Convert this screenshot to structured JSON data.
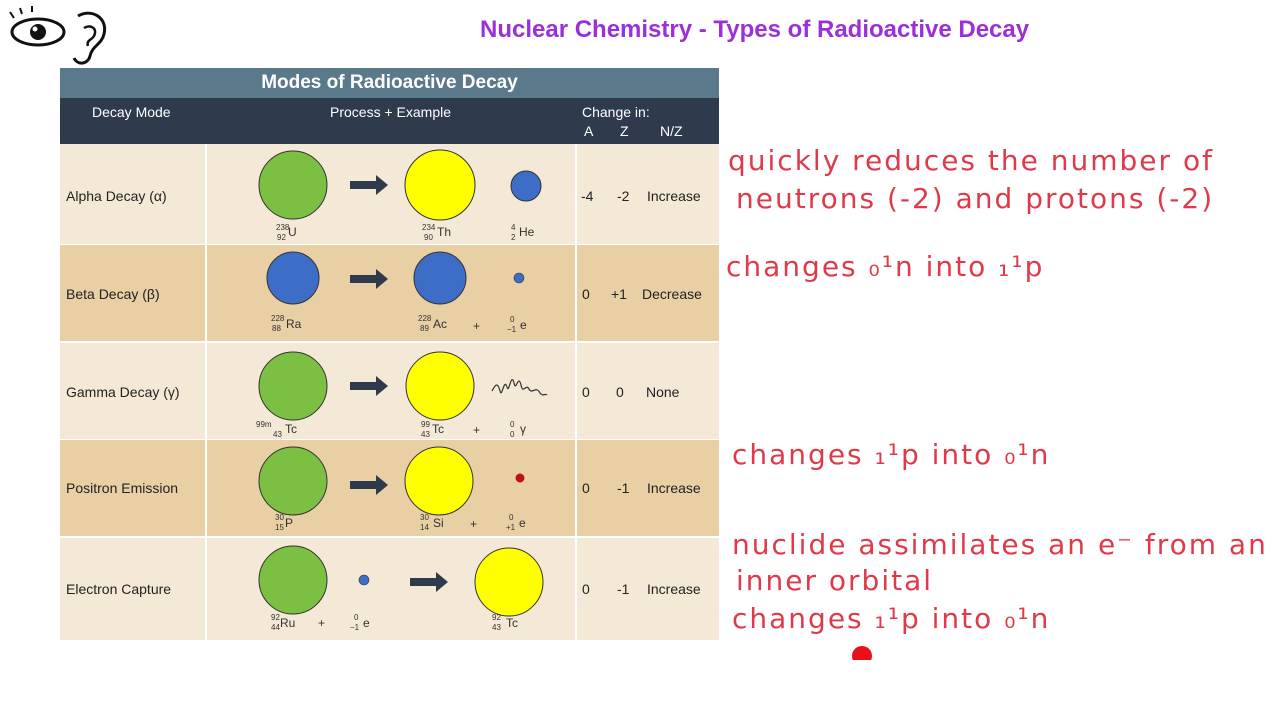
{
  "page": {
    "title": "Nuclear Chemistry - Types of Radioactive Decay"
  },
  "table": {
    "title": "Modes of Radioactive Decay",
    "headers": {
      "mode": "Decay Mode",
      "process": "Process + Example",
      "change": "Change in:",
      "a": "A",
      "z": "Z",
      "nz": "N/Z"
    },
    "rows": [
      {
        "name": "Alpha Decay (α)",
        "a": "-4",
        "z": "-2",
        "nz": "Increase",
        "parent": {
          "mass": "238",
          "atomic": "92",
          "symbol": "U"
        },
        "daughter": {
          "mass": "234",
          "atomic": "90",
          "symbol": "Th"
        },
        "particle": {
          "mass": "4",
          "atomic": "2",
          "symbol": "He"
        },
        "plus": ""
      },
      {
        "name": "Beta Decay (β)",
        "a": "0",
        "z": "+1",
        "nz": "Decrease",
        "parent": {
          "mass": "228",
          "atomic": "88",
          "symbol": "Ra"
        },
        "daughter": {
          "mass": "228",
          "atomic": "89",
          "symbol": "Ac"
        },
        "particle": {
          "mass": "0",
          "atomic": "−1",
          "symbol": "e"
        },
        "plus": "+"
      },
      {
        "name": "Gamma Decay (γ)",
        "a": "0",
        "z": "0",
        "nz": "None",
        "parent": {
          "mass": "99m",
          "atomic": "43",
          "symbol": "Tc"
        },
        "daughter": {
          "mass": "99",
          "atomic": "43",
          "symbol": "Tc"
        },
        "particle": {
          "mass": "0",
          "atomic": "0",
          "symbol": "γ"
        },
        "plus": "+"
      },
      {
        "name": "Positron Emission",
        "a": "0",
        "z": "-1",
        "nz": "Increase",
        "parent": {
          "mass": "30",
          "atomic": "15",
          "symbol": "P"
        },
        "daughter": {
          "mass": "30",
          "atomic": "14",
          "symbol": "Si"
        },
        "particle": {
          "mass": "0",
          "atomic": "+1",
          "symbol": "e"
        },
        "plus": "+"
      },
      {
        "name": "Electron Capture",
        "a": "0",
        "z": "-1",
        "nz": "Increase",
        "parent": {
          "mass": "92",
          "atomic": "44",
          "symbol": "Ru"
        },
        "daughter": {
          "mass": "92",
          "atomic": "43",
          "symbol": "Tc"
        },
        "particle": {
          "mass": "0",
          "atomic": "−1",
          "symbol": "e"
        },
        "plus": "+"
      }
    ]
  },
  "notes": {
    "alpha_line1": "quickly reduces the number of",
    "alpha_line2": "neutrons (-2) and protons (-2)",
    "beta": "changes ₀¹n into ₁¹p",
    "positron": "changes ₁¹p into ₀¹n",
    "ec_line1": "nuclide assimilates an e⁻ from an",
    "ec_line2": "inner orbital",
    "ec_line3": "changes ₁¹p into ₀¹n"
  },
  "colors": {
    "title": "#9b30d9",
    "header_top": "#5a7a8c",
    "header_dark": "#2f3b4c",
    "row_light": "#f4e9d6",
    "row_dark": "#e8cfa4",
    "green": "#7bc043",
    "yellow": "#ffff00",
    "blue": "#3d6dc7",
    "red": "#c0101a",
    "ink": "#e03a4a"
  },
  "icons": {
    "logo": "eye-ear-icon",
    "arrow": "right-arrow-icon",
    "pointer": "red-dot-pointer-icon"
  }
}
